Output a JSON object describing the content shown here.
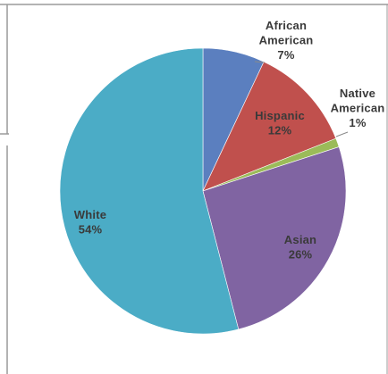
{
  "chart_data": {
    "type": "pie",
    "title": "",
    "legend": "none",
    "colors": {
      "background": "#ffffff",
      "frame_line": "#9a9a9a",
      "label_text": "#3a3a3a",
      "leader_line": "#8a8a8a"
    },
    "slices": [
      {
        "label_lines": [
          "African",
          "American"
        ],
        "pct_label": "7%",
        "value": 7,
        "color": "#5b7fbf"
      },
      {
        "label_lines": [
          "Hispanic"
        ],
        "pct_label": "12%",
        "value": 12,
        "color": "#c0504d"
      },
      {
        "label_lines": [
          "Native",
          "American"
        ],
        "pct_label": "1%",
        "value": 1,
        "color": "#9bbb59"
      },
      {
        "label_lines": [
          "Asian"
        ],
        "pct_label": "26%",
        "value": 26,
        "color": "#8064a2"
      },
      {
        "label_lines": [
          "White"
        ],
        "pct_label": "54%",
        "value": 54,
        "color": "#4bacc6"
      }
    ]
  }
}
